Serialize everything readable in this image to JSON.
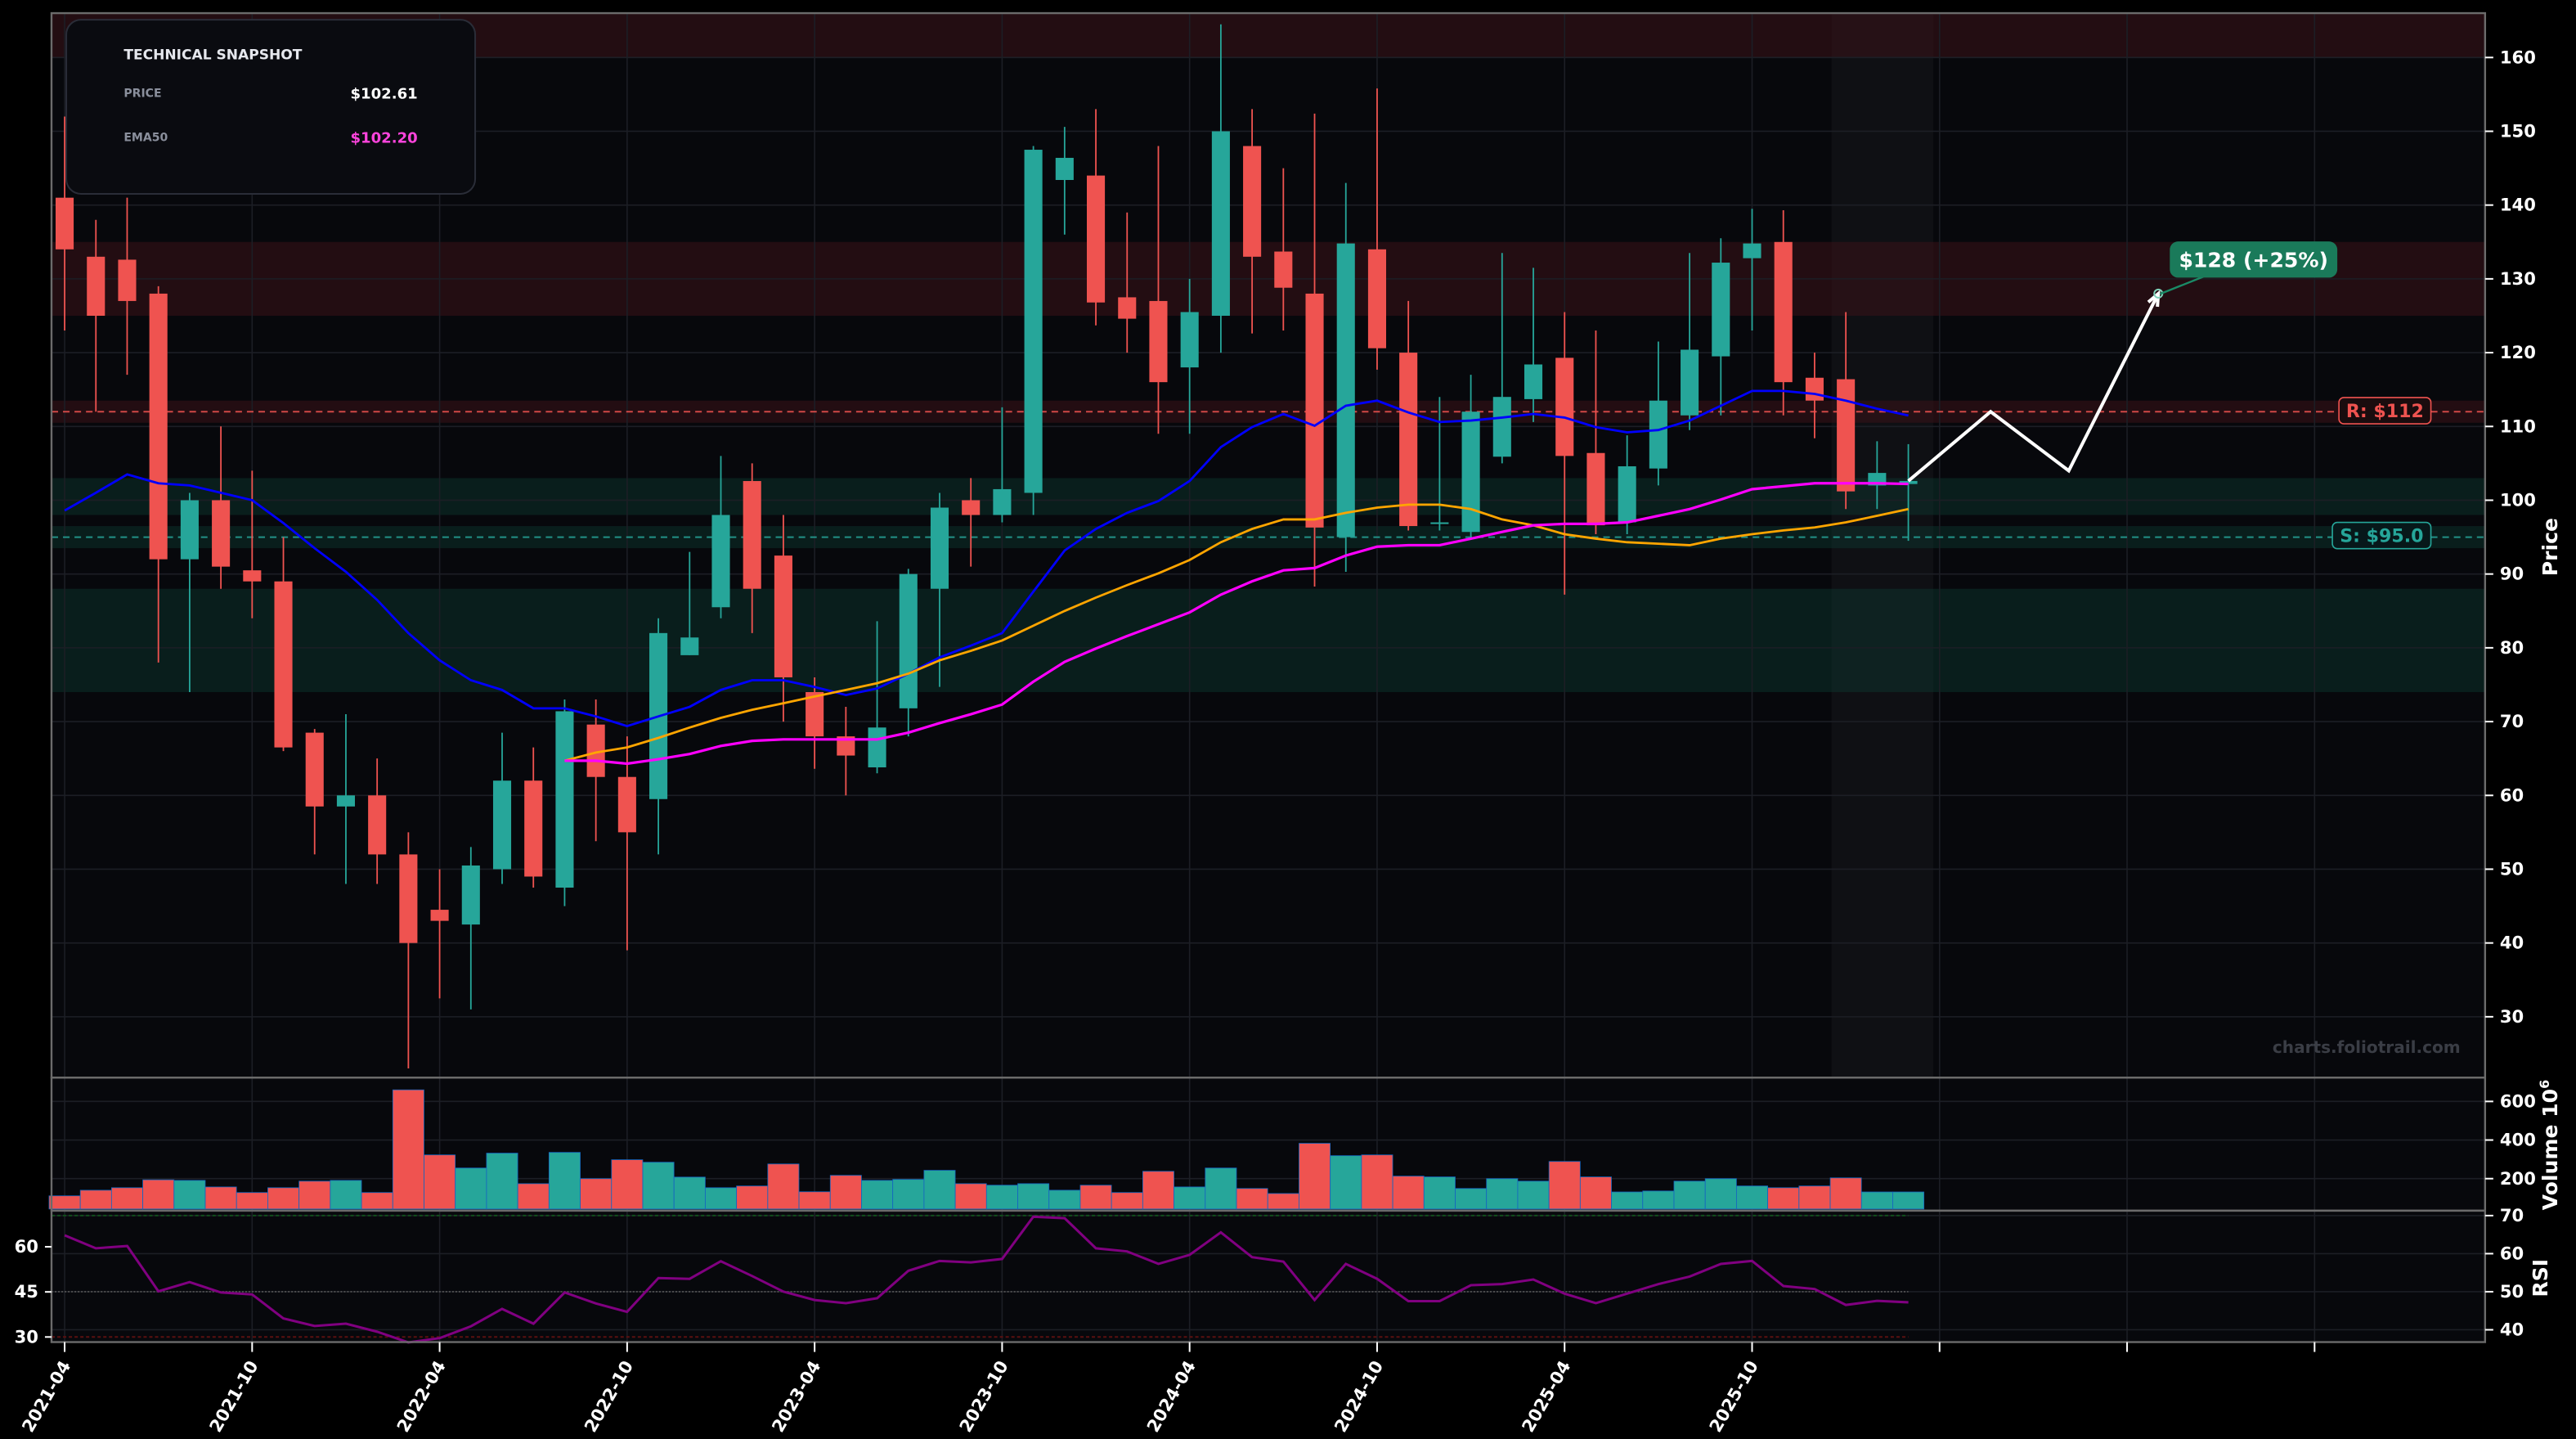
{
  "snapshot": {
    "title": "TECHNICAL SNAPSHOT",
    "price_label": "PRICE",
    "price_value": "$102.61",
    "ema_label": "EMA50",
    "ema_value": "$102.20"
  },
  "watermark": "charts.foliotrail.com",
  "colors": {
    "up": "#26a69a",
    "down": "#ef5350",
    "ema_blue": "#0000ff",
    "ema_orange": "#ffa500",
    "ema50": "#ff00ff",
    "rsi": "#800080",
    "forecast": "#ffffff",
    "target": "#1a7a5a",
    "background": "#07080c"
  },
  "chart_data": {
    "type": "candlestick",
    "x_tick_labels": [
      "2021-04",
      "2021-10",
      "2022-04",
      "2022-10",
      "2023-04",
      "2023-10",
      "2024-04",
      "2024-10",
      "2025-04",
      "2025-10",
      "",
      "",
      ""
    ],
    "x_ticks": [
      "2021-04",
      "2021-10",
      "2022-04",
      "2022-10",
      "2023-04",
      "2023-10",
      "2024-04",
      "2024-10",
      "2025-04",
      "2025-10",
      "2026-04",
      "2026-10",
      "2027-04"
    ],
    "price_axis": {
      "label": "Price",
      "ticks": [
        30,
        40,
        50,
        60,
        70,
        80,
        90,
        100,
        110,
        120,
        130,
        140,
        150,
        160
      ],
      "ylim": [
        22,
        166
      ],
      "grid": true
    },
    "dates": [
      "2021-04",
      "2021-05",
      "2021-06",
      "2021-07",
      "2021-08",
      "2021-09",
      "2021-10",
      "2021-11",
      "2021-12",
      "2022-01",
      "2022-02",
      "2022-03",
      "2022-04",
      "2022-05",
      "2022-06",
      "2022-07",
      "2022-08",
      "2022-09",
      "2022-10",
      "2022-11",
      "2022-12",
      "2023-01",
      "2023-02",
      "2023-03",
      "2023-04",
      "2023-05",
      "2023-06",
      "2023-07",
      "2023-08",
      "2023-09",
      "2023-10",
      "2023-11",
      "2023-12",
      "2024-01",
      "2024-02",
      "2024-03",
      "2024-04",
      "2024-05",
      "2024-06",
      "2024-07",
      "2024-08",
      "2024-09",
      "2024-10",
      "2024-11",
      "2024-12",
      "2025-01",
      "2025-02",
      "2025-03",
      "2025-04",
      "2025-05",
      "2025-06",
      "2025-07",
      "2025-08",
      "2025-09",
      "2025-10",
      "2025-11",
      "2025-12",
      "2026-01",
      "2026-02",
      "2026-03"
    ],
    "ohlc": [
      [
        141,
        152,
        123,
        134
      ],
      [
        133,
        138,
        112,
        125
      ],
      [
        132.6,
        141,
        117,
        127
      ],
      [
        128,
        129,
        78,
        92
      ],
      [
        92,
        101,
        74,
        100
      ],
      [
        100,
        110,
        88,
        91
      ],
      [
        90.5,
        104,
        84,
        89
      ],
      [
        89,
        95,
        66,
        66.5
      ],
      [
        68.5,
        69,
        52,
        58.5
      ],
      [
        58.5,
        71,
        48,
        60
      ],
      [
        60,
        65,
        48,
        52
      ],
      [
        52,
        55,
        23,
        40
      ],
      [
        44.5,
        50,
        32.5,
        43
      ],
      [
        42.5,
        53,
        31,
        50.5
      ],
      [
        50,
        68.5,
        48,
        62
      ],
      [
        62,
        66.5,
        47.5,
        49
      ],
      [
        47.5,
        73,
        45,
        71.4
      ],
      [
        69.6,
        73,
        53.8,
        62.5
      ],
      [
        62.5,
        68,
        39,
        55
      ],
      [
        59.5,
        84,
        52,
        82
      ],
      [
        79,
        93,
        79,
        81.4
      ],
      [
        85.5,
        106,
        84,
        98
      ],
      [
        102.6,
        105,
        82,
        88
      ],
      [
        92.5,
        98,
        70,
        76
      ],
      [
        74,
        76,
        63.6,
        68
      ],
      [
        68,
        72,
        60,
        65.4
      ],
      [
        63.8,
        83.6,
        63,
        69.2
      ],
      [
        71.8,
        90.7,
        68,
        90
      ],
      [
        88,
        101,
        74.7,
        99
      ],
      [
        100,
        103,
        91,
        98
      ],
      [
        98,
        112.6,
        97,
        101.5
      ],
      [
        101,
        148,
        98,
        147.5
      ],
      [
        143.4,
        150.6,
        136,
        146.4
      ],
      [
        144,
        153,
        123.7,
        126.8
      ],
      [
        127.5,
        139,
        120,
        124.6
      ],
      [
        127,
        148,
        109,
        116
      ],
      [
        118,
        130,
        109,
        125.5
      ],
      [
        125,
        164.5,
        120,
        150
      ],
      [
        148,
        153,
        122.6,
        133
      ],
      [
        133.7,
        145,
        123,
        128.8
      ],
      [
        128,
        152.4,
        88.3,
        96.3
      ],
      [
        95,
        143,
        90.3,
        134.8
      ],
      [
        134,
        155.8,
        117.7,
        120.6
      ],
      [
        120,
        127,
        95.9,
        96.5
      ],
      [
        96.8,
        114,
        95.9,
        97
      ],
      [
        95.7,
        117,
        94.8,
        112
      ],
      [
        105.9,
        133.5,
        105,
        114
      ],
      [
        113.7,
        131.5,
        110.6,
        118.4
      ],
      [
        119.3,
        125.5,
        87.2,
        106
      ],
      [
        106.4,
        123,
        95.4,
        96.6
      ],
      [
        97,
        108.8,
        95.4,
        104.6
      ],
      [
        104.3,
        121.5,
        102,
        113.5
      ],
      [
        111.5,
        133.5,
        109.5,
        120.4
      ],
      [
        119.5,
        135.5,
        111.5,
        132.2
      ],
      [
        132.8,
        139.5,
        123,
        134.8
      ],
      [
        135,
        139.3,
        111.5,
        116
      ],
      [
        116.6,
        120,
        108.4,
        113.5
      ],
      [
        116.4,
        125.5,
        98.8,
        101.2
      ],
      [
        102,
        108,
        98.8,
        103.7
      ],
      [
        102.2,
        107.6,
        94.5,
        102.61
      ]
    ],
    "ema_blue": [
      98.6,
      101,
      103.5,
      102.3,
      102,
      101,
      100,
      96.9,
      93.5,
      90.3,
      86.5,
      82,
      78.3,
      75.6,
      74.3,
      71.8,
      71.8,
      70.7,
      69.4,
      70.7,
      72,
      74.3,
      75.6,
      75.6,
      74.7,
      73.6,
      74.5,
      76.5,
      78.7,
      80.3,
      82,
      87.6,
      93.2,
      96.1,
      98.3,
      99.9,
      102.6,
      107.2,
      109.9,
      111.7,
      110.1,
      112.8,
      113.5,
      111.9,
      110.6,
      110.8,
      111.2,
      111.7,
      111.2,
      109.9,
      109.2,
      109.5,
      110.8,
      112.8,
      114.8,
      114.8,
      114.4,
      113.5,
      112.4,
      111.5
    ],
    "ema_orange_start": "2022-08",
    "ema_orange": [
      64.7,
      65.8,
      66.5,
      67.8,
      69.2,
      70.5,
      71.6,
      72.5,
      73.4,
      74.3,
      75.2,
      76.5,
      78.3,
      79.6,
      81,
      83,
      85,
      86.8,
      88.5,
      90.1,
      91.9,
      94.3,
      96.1,
      97.4,
      97.4,
      98.3,
      99,
      99.4,
      99.4,
      98.8,
      97.4,
      96.6,
      95.4,
      94.8,
      94.3,
      94.1,
      93.9,
      94.8,
      95.4,
      95.9,
      96.3,
      97,
      97.9,
      98.8
    ],
    "ema50_start": "2022-08",
    "ema50": [
      64.7,
      64.7,
      64.3,
      64.9,
      65.6,
      66.7,
      67.4,
      67.6,
      67.6,
      67.6,
      67.6,
      68.5,
      69.8,
      71,
      72.3,
      75.4,
      78.1,
      79.9,
      81.6,
      83.2,
      84.8,
      87.2,
      89,
      90.5,
      90.8,
      92.5,
      93.7,
      93.9,
      93.9,
      94.8,
      95.7,
      96.6,
      96.8,
      96.8,
      97,
      97.9,
      98.8,
      100.1,
      101.5,
      101.9,
      102.3,
      102.3,
      102.3,
      102.2
    ],
    "levels": {
      "resistance": {
        "value": 112,
        "label": "R: $112"
      },
      "support": {
        "value": 95.0,
        "label": "S: $95.0"
      }
    },
    "zones": [
      {
        "kind": "resistance",
        "from": 160,
        "to": 166
      },
      {
        "kind": "resistance",
        "from": 125,
        "to": 135
      },
      {
        "kind": "resistance",
        "from": 110.5,
        "to": 113.5
      },
      {
        "kind": "support",
        "from": 98,
        "to": 103
      },
      {
        "kind": "support",
        "from": 93.5,
        "to": 96.5
      },
      {
        "kind": "support",
        "from": 74,
        "to": 88
      }
    ],
    "forecast": {
      "points": [
        [
          "2026-03",
          102.61
        ],
        [
          "2026-05-20",
          112
        ],
        [
          "2026-08-05",
          104
        ],
        [
          "2026-11-01",
          128
        ]
      ],
      "target_label": "$128 (+25%)"
    },
    "volume": {
      "label": "Volume",
      "unit_label": "10",
      "unit_exp": "6",
      "ticks": [
        200,
        400,
        600
      ],
      "ylim": [
        40,
        723
      ],
      "values": [
        111,
        140,
        153,
        194,
        191,
        157,
        128,
        153,
        187,
        191,
        128,
        660,
        323,
        255,
        332,
        174,
        336,
        200,
        298,
        285,
        208,
        153,
        162,
        276,
        132,
        217,
        191,
        196,
        243,
        174,
        166,
        174,
        140,
        166,
        128,
        238,
        157,
        255,
        149,
        123,
        383,
        319,
        323,
        213,
        209,
        149,
        200,
        187,
        289,
        209,
        131,
        136,
        187,
        200,
        162,
        153,
        162,
        204,
        131,
        131
      ]
    },
    "rsi": {
      "label": "RSI",
      "ticks_right": [
        40,
        50,
        60,
        70
      ],
      "ticks_left": [
        30,
        45,
        60
      ],
      "overbought": 70,
      "midline": 50,
      "values": [
        64.8,
        61.4,
        62,
        50.1,
        52.5,
        49.8,
        49.3,
        43,
        41,
        41.6,
        39.5,
        36.7,
        37.8,
        40.9,
        45.5,
        41.6,
        49.8,
        46.9,
        44.7,
        53.6,
        53.4,
        58,
        54.1,
        50,
        47.8,
        47,
        48.3,
        55.5,
        58.1,
        57.7,
        58.6,
        69.7,
        69.3,
        61.4,
        60.6,
        57.3,
        59.7,
        65.6,
        59.1,
        57.9,
        47.8,
        57.3,
        53.4,
        47.5,
        47.5,
        51.7,
        52,
        53.2,
        49.5,
        47,
        49.5,
        52,
        54,
        57.3,
        58.1,
        51.5,
        50.7,
        46.5,
        47.6,
        47.2
      ]
    }
  }
}
